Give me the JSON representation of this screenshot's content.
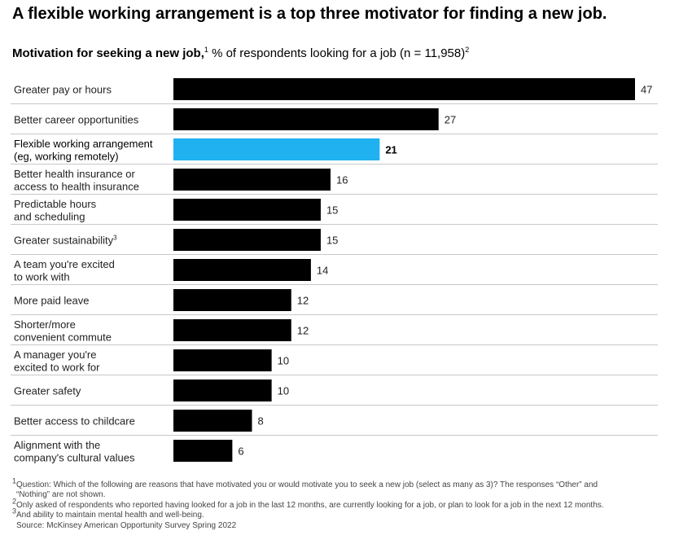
{
  "title": "A flexible working arrangement is a top three motivator for finding a new job.",
  "subtitle": {
    "bold": "Motivation for seeking a new job,",
    "sup1": "1",
    "rest": "% of respondents looking for a job (n = 11,958)",
    "sup2": "2"
  },
  "colors": {
    "bar": "#000000",
    "highlight": "#1fb1f0",
    "divider": "#c8c8c8"
  },
  "chart_data": {
    "type": "bar",
    "orientation": "horizontal",
    "title": "",
    "xlabel": "",
    "ylabel": "",
    "xlim": [
      0,
      47
    ],
    "grid": false,
    "highlight_index": 2,
    "categories": [
      [
        "Greater pay or hours"
      ],
      [
        "Better career opportunities"
      ],
      [
        "Flexible working arrangement",
        "(eg, working remotely)"
      ],
      [
        "Better health insurance or",
        "access to health insurance"
      ],
      [
        "Predictable hours",
        "and scheduling"
      ],
      [
        "Greater sustainability"
      ],
      [
        "A team you're excited",
        "to work with"
      ],
      [
        "More paid leave"
      ],
      [
        "Shorter/more",
        "convenient commute"
      ],
      [
        "A manager you're",
        "excited to work for"
      ],
      [
        "Greater safety"
      ],
      [
        "Better access to childcare"
      ],
      [
        "Alignment with the",
        "company's cultural values"
      ]
    ],
    "category_superscripts": {
      "5": "3"
    },
    "values": [
      47,
      27,
      21,
      16,
      15,
      15,
      14,
      12,
      12,
      10,
      10,
      8,
      6
    ]
  },
  "footnotes": [
    {
      "sup": "1",
      "text": "Question: Which of the following are reasons that have motivated you or would motivate you to seek a new job (select as many as 3)? The responses “Other” and"
    },
    {
      "sup": "",
      "text": "“Nothing” are not shown.",
      "indent": true
    },
    {
      "sup": "2",
      "text": "Only asked of respondents who reported having looked for a job in the last 12 months, are currently looking for a job, or plan to look for a job in the next 12 months."
    },
    {
      "sup": "3",
      "text": "And ability to maintain mental health and well-being."
    },
    {
      "sup": "",
      "text": "Source: McKinsey American Opportunity Survey Spring 2022",
      "indent": true
    }
  ]
}
